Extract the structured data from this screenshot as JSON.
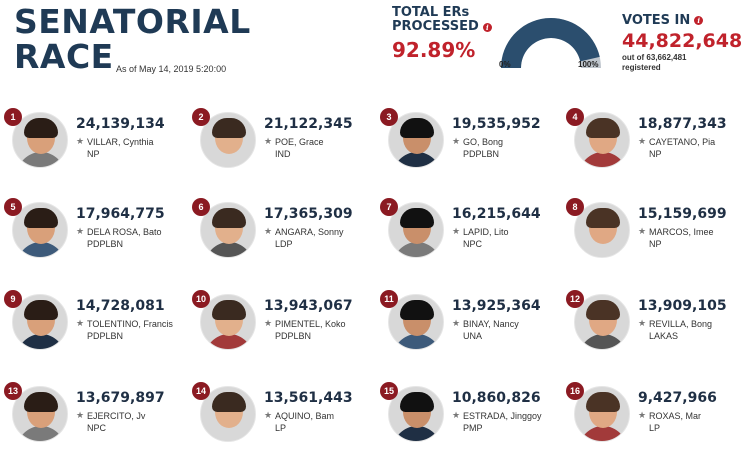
{
  "header": {
    "title_line1": "SENATORIAL",
    "title_line2": "RACE",
    "as_of": "As of May 14, 2019 5:20:00",
    "ers_label_line1": "TOTAL ERs",
    "ers_label_line2": "PROCESSED",
    "ers_percent": "92.89%",
    "ers_fraction": 0.9289,
    "gauge_min": "0%",
    "gauge_max": "100%",
    "votes_label": "VOTES IN",
    "votes_in": "44,822,648",
    "votes_out_of_line1": "out of 63,662,481",
    "votes_out_of_line2": "registered",
    "info_icon": "i"
  },
  "colors": {
    "accent_red": "#c0222b",
    "navy": "#1f3a55",
    "gauge_fill": "#2b4e6e",
    "gauge_track": "#bfc6cd",
    "rank_badge": "#8b1a22"
  },
  "candidates": [
    {
      "rank": "1",
      "votes": "24,139,134",
      "name": "VILLAR, Cynthia",
      "party": "NP"
    },
    {
      "rank": "2",
      "votes": "21,122,345",
      "name": "POE, Grace",
      "party": "IND"
    },
    {
      "rank": "3",
      "votes": "19,535,952",
      "name": "GO, Bong",
      "party": "PDPLBN"
    },
    {
      "rank": "4",
      "votes": "18,877,343",
      "name": "CAYETANO, Pia",
      "party": "NP"
    },
    {
      "rank": "5",
      "votes": "17,964,775",
      "name": "DELA ROSA, Bato",
      "party": "PDPLBN"
    },
    {
      "rank": "6",
      "votes": "17,365,309",
      "name": "ANGARA, Sonny",
      "party": "LDP"
    },
    {
      "rank": "7",
      "votes": "16,215,644",
      "name": "LAPID, Lito",
      "party": "NPC"
    },
    {
      "rank": "8",
      "votes": "15,159,699",
      "name": "MARCOS, Imee",
      "party": "NP"
    },
    {
      "rank": "9",
      "votes": "14,728,081",
      "name": "TOLENTINO, Francis",
      "party": "PDPLBN"
    },
    {
      "rank": "10",
      "votes": "13,943,067",
      "name": "PIMENTEL, Koko",
      "party": "PDPLBN"
    },
    {
      "rank": "11",
      "votes": "13,925,364",
      "name": "BINAY, Nancy",
      "party": "UNA"
    },
    {
      "rank": "12",
      "votes": "13,909,105",
      "name": "REVILLA, Bong",
      "party": "LAKAS"
    },
    {
      "rank": "13",
      "votes": "13,679,897",
      "name": "EJERCITO, Jv",
      "party": "NPC"
    },
    {
      "rank": "14",
      "votes": "13,561,443",
      "name": "AQUINO, Bam",
      "party": "LP"
    },
    {
      "rank": "15",
      "votes": "10,860,826",
      "name": "ESTRADA, Jinggoy",
      "party": "PMP"
    },
    {
      "rank": "16",
      "votes": "9,427,966",
      "name": "ROXAS, Mar",
      "party": "LP"
    }
  ]
}
